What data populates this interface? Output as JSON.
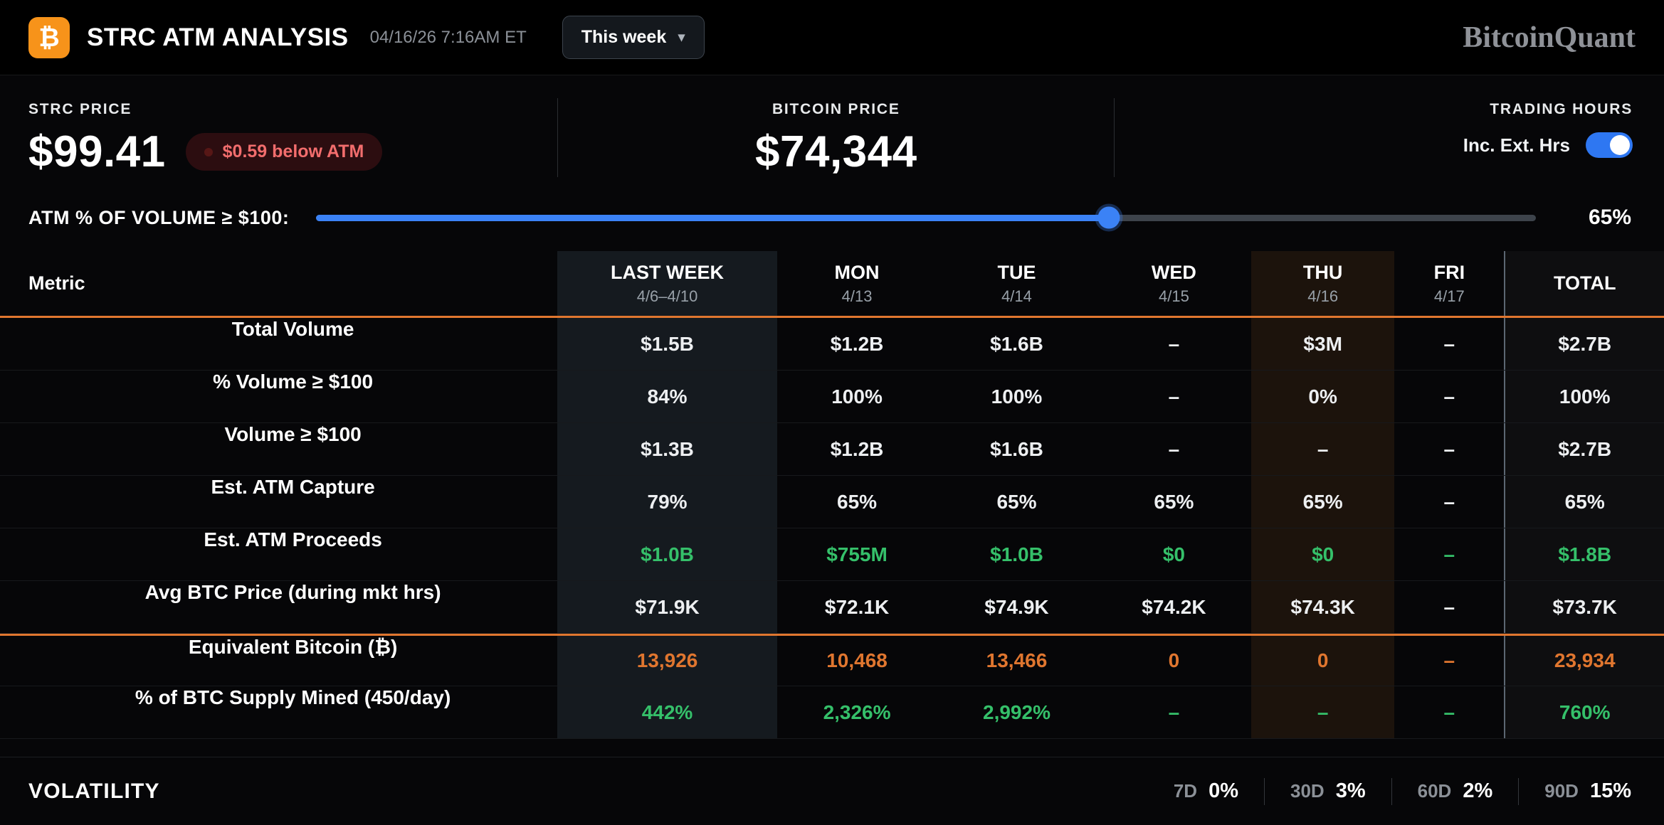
{
  "icons": {
    "chevron_down": "▾",
    "logo_symbol": "₿"
  },
  "header": {
    "title": "STRC ATM ANALYSIS",
    "timestamp": "04/16/26 7:16AM ET",
    "period_selector": "This week",
    "brand": "BitcoinQuant"
  },
  "prices": {
    "strc": {
      "label": "STRC PRICE",
      "value": "$99.41",
      "badge": "$0.59 below ATM"
    },
    "bitcoin": {
      "label": "BITCOIN PRICE",
      "value": "$74,344"
    },
    "trading_hours": {
      "label": "TRADING HOURS",
      "toggle_label": "Inc. Ext. Hrs",
      "toggle_on": true
    }
  },
  "slider": {
    "label": "ATM % OF VOLUME ≥ $100:",
    "percent": 65,
    "value": "65%"
  },
  "table": {
    "columns": [
      {
        "label": "Metric",
        "sublabel": ""
      },
      {
        "label": "LAST WEEK",
        "sublabel": "4/6–4/10"
      },
      {
        "label": "MON",
        "sublabel": "4/13"
      },
      {
        "label": "TUE",
        "sublabel": "4/14"
      },
      {
        "label": "WED",
        "sublabel": "4/15"
      },
      {
        "label": "THU",
        "sublabel": "4/16"
      },
      {
        "label": "FRI",
        "sublabel": "4/17"
      },
      {
        "label": "TOTAL",
        "sublabel": ""
      }
    ],
    "rows": [
      {
        "metric": "Total Volume",
        "values": [
          "$1.5B",
          "$1.2B",
          "$1.6B",
          "–",
          "$3M",
          "–",
          "$2.7B"
        ],
        "value_color": "white",
        "top_divider": false
      },
      {
        "metric": "% Volume ≥ $100",
        "values": [
          "84%",
          "100%",
          "100%",
          "–",
          "0%",
          "–",
          "100%"
        ],
        "value_color": "white",
        "top_divider": false
      },
      {
        "metric": "Volume ≥ $100",
        "values": [
          "$1.3B",
          "$1.2B",
          "$1.6B",
          "–",
          "–",
          "–",
          "$2.7B"
        ],
        "value_color": "white",
        "top_divider": false
      },
      {
        "metric": "Est. ATM Capture",
        "values": [
          "79%",
          "65%",
          "65%",
          "65%",
          "65%",
          "–",
          "65%"
        ],
        "value_color": "white",
        "top_divider": false
      },
      {
        "metric": "Est. ATM Proceeds",
        "values": [
          "$1.0B",
          "$755M",
          "$1.0B",
          "$0",
          "$0",
          "–",
          "$1.8B"
        ],
        "value_color": "green",
        "top_divider": false
      },
      {
        "metric": "Avg BTC Price (during mkt hrs)",
        "values": [
          "$71.9K",
          "$72.1K",
          "$74.9K",
          "$74.2K",
          "$74.3K",
          "–",
          "$73.7K"
        ],
        "value_color": "white",
        "top_divider": false
      },
      {
        "metric": "Equivalent Bitcoin (₿)",
        "values": [
          "13,926",
          "10,468",
          "13,466",
          "0",
          "0",
          "–",
          "23,934"
        ],
        "value_color": "orange",
        "top_divider": true
      },
      {
        "metric": "% of BTC Supply Mined (450/day)",
        "values": [
          "442%",
          "2,326%",
          "2,992%",
          "–",
          "–",
          "–",
          "760%"
        ],
        "value_color": "green",
        "top_divider": false
      }
    ]
  },
  "volatility": {
    "label": "VOLATILITY",
    "items": [
      {
        "period": "7D",
        "value": "0%"
      },
      {
        "period": "30D",
        "value": "3%"
      },
      {
        "period": "60D",
        "value": "2%"
      },
      {
        "period": "90D",
        "value": "15%"
      }
    ]
  }
}
